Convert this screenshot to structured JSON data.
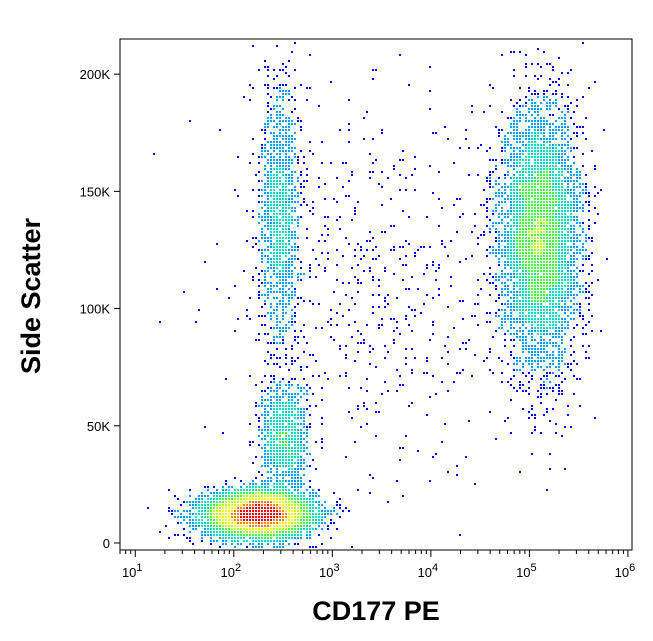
{
  "chart_data": {
    "type": "scatter",
    "style": "flow cytometry density dot plot",
    "xlabel": "CD177 PE",
    "ylabel": "Side Scatter",
    "x_scale": "log",
    "y_scale": "linear",
    "xlim": [
      7,
      1100000
    ],
    "ylim": [
      -3000,
      215000
    ],
    "x_ticks": [
      {
        "value": 10,
        "base": "10",
        "exp": "1"
      },
      {
        "value": 100,
        "base": "10",
        "exp": "2"
      },
      {
        "value": 1000,
        "base": "10",
        "exp": "3"
      },
      {
        "value": 10000,
        "base": "10",
        "exp": "4"
      },
      {
        "value": 100000,
        "base": "10",
        "exp": "5"
      },
      {
        "value": 1000000,
        "base": "10",
        "exp": "6"
      }
    ],
    "y_ticks": [
      {
        "value": 0,
        "label": "0"
      },
      {
        "value": 50000,
        "label": "50K"
      },
      {
        "value": 100000,
        "label": "100K"
      },
      {
        "value": 150000,
        "label": "150K"
      },
      {
        "value": 200000,
        "label": "200K"
      }
    ],
    "density_colors": [
      "#0000ff",
      "#00a0ff",
      "#00e0c0",
      "#40ff40",
      "#c0ff00",
      "#ffff00",
      "#ff8000",
      "#ff0000"
    ],
    "populations": [
      {
        "x": 180,
        "y": 12000,
        "x_spread_decades": 0.28,
        "y_spread": 5000,
        "count": 5500
      },
      {
        "x": 330,
        "y": 45000,
        "x_spread_decades": 0.12,
        "y_spread": 12000,
        "count": 1000
      },
      {
        "x": 300,
        "y": 140000,
        "x_spread_decades": 0.1,
        "y_spread": 28000,
        "count": 1300
      },
      {
        "x": 130000,
        "y": 130000,
        "x_spread_decades": 0.2,
        "y_spread": 27000,
        "count": 5500
      },
      {
        "x": 3000,
        "y": 110000,
        "x_spread_decades": 0.8,
        "y_spread": 40000,
        "count": 600
      }
    ]
  }
}
